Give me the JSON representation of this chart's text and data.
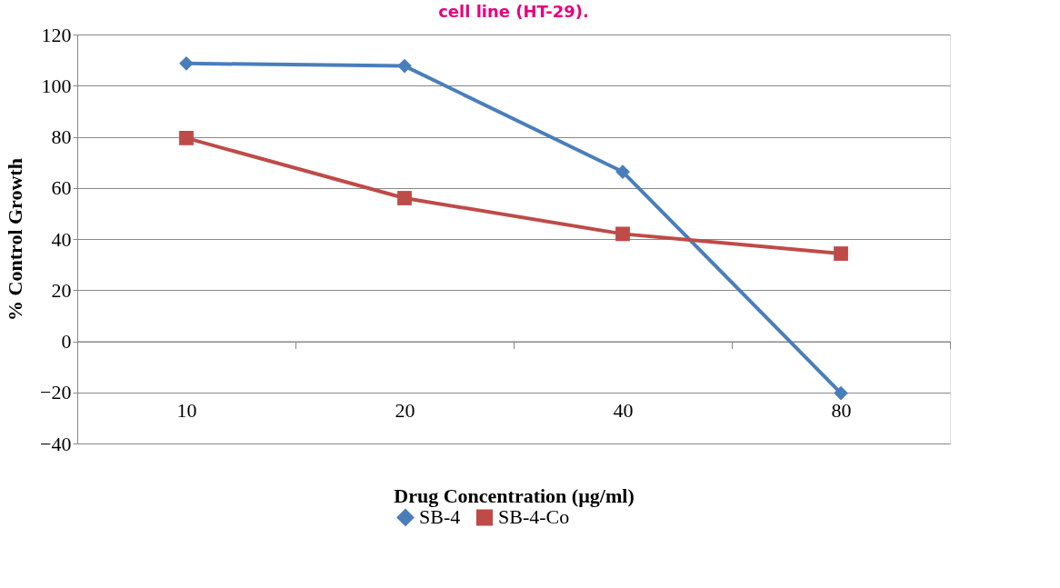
{
  "chart_data": {
    "type": "line",
    "title": "cell line (HT-29).",
    "xlabel": "Drug Concentration (µg/ml)",
    "ylabel": "% Control Growth",
    "categories": [
      "10",
      "20",
      "40",
      "80"
    ],
    "series": [
      {
        "name": "SB-4",
        "color": "#4a7ebb",
        "marker": "diamond",
        "values": [
          108.7,
          107.7,
          66.3,
          -20.3
        ]
      },
      {
        "name": "SB-4-Co",
        "color": "#be4b48",
        "marker": "square",
        "values": [
          79.5,
          56,
          42,
          34.3
        ]
      }
    ],
    "ylim": [
      -40,
      120
    ],
    "yticks": [
      -40,
      -20,
      0,
      20,
      40,
      60,
      80,
      100,
      120
    ],
    "grid": "y",
    "legend": "bottom",
    "line_style": "solid"
  }
}
